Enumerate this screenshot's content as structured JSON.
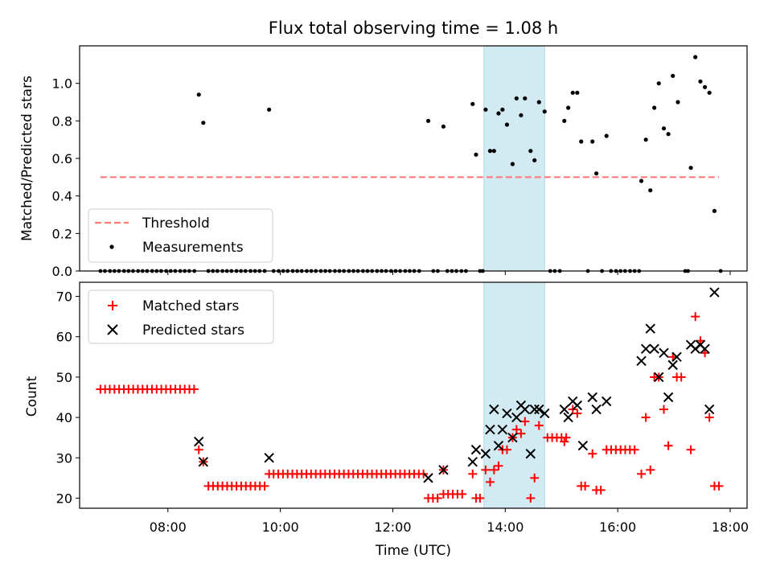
{
  "title": "Flux total observing time = 1.08 h",
  "colors": {
    "threshold": "#ff7b7b",
    "measurement": "#000000",
    "matched": "#ff0000",
    "predicted": "#000000",
    "highlight": "#add8e6"
  },
  "chart_data": [
    {
      "type": "scatter",
      "ylabel": "Matched/Predicted stars",
      "xlim_hours": [
        6.43,
        18.3
      ],
      "ylim": [
        0,
        1.2
      ],
      "yticks": [
        0.0,
        0.2,
        0.4,
        0.6,
        0.8,
        1.0
      ],
      "highlight_span_hours": [
        13.62,
        14.7
      ],
      "threshold": {
        "name": "Threshold",
        "value": 0.5,
        "x_range_hours": [
          6.8,
          17.8
        ],
        "style": "dashed"
      },
      "legend": {
        "position": "lower-left",
        "entries": [
          "Threshold",
          "Measurements"
        ]
      },
      "series": [
        {
          "name": "Measurements",
          "marker": "dot",
          "points": [
            [
              8.55,
              0.94
            ],
            [
              8.63,
              0.79
            ],
            [
              9.8,
              0.86
            ],
            [
              12.63,
              0.8
            ],
            [
              12.9,
              0.77
            ],
            [
              13.42,
              0.89
            ],
            [
              13.48,
              0.62
            ],
            [
              13.65,
              0.86
            ],
            [
              13.73,
              0.64
            ],
            [
              13.8,
              0.64
            ],
            [
              13.88,
              0.84
            ],
            [
              13.95,
              0.86
            ],
            [
              14.03,
              0.78
            ],
            [
              14.13,
              0.57
            ],
            [
              14.2,
              0.92
            ],
            [
              14.28,
              0.83
            ],
            [
              14.35,
              0.92
            ],
            [
              14.45,
              0.64
            ],
            [
              14.52,
              0.59
            ],
            [
              14.6,
              0.9
            ],
            [
              14.7,
              0.85
            ],
            [
              15.05,
              0.8
            ],
            [
              15.12,
              0.87
            ],
            [
              15.2,
              0.95
            ],
            [
              15.28,
              0.95
            ],
            [
              15.35,
              0.69
            ],
            [
              15.55,
              0.69
            ],
            [
              15.62,
              0.52
            ],
            [
              15.8,
              0.72
            ],
            [
              16.42,
              0.48
            ],
            [
              16.5,
              0.7
            ],
            [
              16.58,
              0.43
            ],
            [
              16.65,
              0.87
            ],
            [
              16.73,
              1.0
            ],
            [
              16.82,
              0.76
            ],
            [
              16.9,
              0.73
            ],
            [
              16.98,
              1.04
            ],
            [
              17.07,
              0.9
            ],
            [
              17.3,
              0.55
            ],
            [
              17.38,
              1.14
            ],
            [
              17.47,
              1.01
            ],
            [
              17.55,
              0.98
            ],
            [
              17.63,
              0.95
            ],
            [
              17.72,
              0.32
            ]
          ],
          "zero_points_hours": [
            6.8,
            6.88,
            6.97,
            7.05,
            7.13,
            7.22,
            7.3,
            7.38,
            7.47,
            7.55,
            7.63,
            7.72,
            7.8,
            7.88,
            7.97,
            8.05,
            8.13,
            8.22,
            8.3,
            8.38,
            8.47,
            8.72,
            8.8,
            8.88,
            8.97,
            9.05,
            9.13,
            9.22,
            9.3,
            9.38,
            9.47,
            9.55,
            9.63,
            9.72,
            9.88,
            9.97,
            10.05,
            10.13,
            10.22,
            10.3,
            10.38,
            10.47,
            10.55,
            10.63,
            10.72,
            10.8,
            10.88,
            10.97,
            11.05,
            11.13,
            11.22,
            11.3,
            11.38,
            11.47,
            11.55,
            11.63,
            11.72,
            11.8,
            11.88,
            11.97,
            12.05,
            12.13,
            12.22,
            12.3,
            12.38,
            12.47,
            12.72,
            12.8,
            12.97,
            13.05,
            13.13,
            13.22,
            13.3,
            13.55,
            13.6,
            14.8,
            14.88,
            14.97,
            15.47,
            15.72,
            15.88,
            15.97,
            16.05,
            16.13,
            16.22,
            16.3,
            16.38,
            17.2,
            17.25,
            17.83
          ]
        }
      ]
    },
    {
      "type": "scatter",
      "xlabel": "Time (UTC)",
      "ylabel": "Count",
      "xlim_hours": [
        6.43,
        18.3
      ],
      "ylim": [
        17.5,
        73.5
      ],
      "yticks": [
        20,
        30,
        40,
        50,
        60,
        70
      ],
      "xticks": [
        "08:00",
        "10:00",
        "12:00",
        "14:00",
        "16:00",
        "18:00"
      ],
      "xtick_hours": [
        8,
        10,
        12,
        14,
        16,
        18
      ],
      "highlight_span_hours": [
        13.62,
        14.7
      ],
      "legend": {
        "position": "upper-left",
        "entries": [
          "Matched stars",
          "Predicted stars"
        ]
      },
      "series": [
        {
          "name": "Matched stars",
          "marker": "plus",
          "runs": [
            {
              "from": 6.8,
              "to": 8.47,
              "step": 0.0833,
              "value": 47
            },
            {
              "from": 8.72,
              "to": 9.72,
              "step": 0.0833,
              "value": 23
            },
            {
              "from": 9.88,
              "to": 12.55,
              "step": 0.0833,
              "value": 26
            },
            {
              "from": 12.63,
              "to": 12.8,
              "step": 0.0833,
              "value": 20
            },
            {
              "from": 12.9,
              "to": 13.3,
              "step": 0.0833,
              "value": 21
            },
            {
              "from": 14.75,
              "to": 15.12,
              "step": 0.0833,
              "value": 35
            },
            {
              "from": 15.8,
              "to": 16.3,
              "step": 0.0833,
              "value": 32
            }
          ],
          "points": [
            [
              8.55,
              32
            ],
            [
              8.63,
              29
            ],
            [
              9.8,
              26
            ],
            [
              12.9,
              27
            ],
            [
              13.42,
              26
            ],
            [
              13.48,
              20
            ],
            [
              13.55,
              20
            ],
            [
              13.65,
              27
            ],
            [
              13.73,
              24
            ],
            [
              13.8,
              27
            ],
            [
              13.88,
              28
            ],
            [
              13.95,
              32
            ],
            [
              14.03,
              32
            ],
            [
              14.13,
              35
            ],
            [
              14.2,
              37
            ],
            [
              14.28,
              36
            ],
            [
              14.35,
              39
            ],
            [
              14.45,
              20
            ],
            [
              14.52,
              25
            ],
            [
              14.6,
              38
            ],
            [
              15.05,
              34
            ],
            [
              15.2,
              42
            ],
            [
              15.28,
              41
            ],
            [
              15.35,
              23
            ],
            [
              15.42,
              23
            ],
            [
              15.55,
              31
            ],
            [
              15.62,
              22
            ],
            [
              15.7,
              22
            ],
            [
              16.42,
              26
            ],
            [
              16.5,
              40
            ],
            [
              16.58,
              27
            ],
            [
              16.65,
              50
            ],
            [
              16.73,
              50
            ],
            [
              16.82,
              42
            ],
            [
              16.9,
              33
            ],
            [
              16.98,
              55
            ],
            [
              17.05,
              50
            ],
            [
              17.13,
              50
            ],
            [
              17.3,
              32
            ],
            [
              17.38,
              65
            ],
            [
              17.47,
              59
            ],
            [
              17.55,
              56
            ],
            [
              17.63,
              40
            ],
            [
              17.72,
              23
            ],
            [
              17.8,
              23
            ]
          ]
        },
        {
          "name": "Predicted stars",
          "marker": "x",
          "points": [
            [
              8.55,
              34
            ],
            [
              8.63,
              29
            ],
            [
              9.8,
              30
            ],
            [
              12.63,
              25
            ],
            [
              12.9,
              27
            ],
            [
              13.42,
              29
            ],
            [
              13.48,
              32
            ],
            [
              13.65,
              31
            ],
            [
              13.73,
              37
            ],
            [
              13.8,
              42
            ],
            [
              13.88,
              33
            ],
            [
              13.95,
              37
            ],
            [
              14.03,
              41
            ],
            [
              14.13,
              35
            ],
            [
              14.2,
              40
            ],
            [
              14.28,
              43
            ],
            [
              14.35,
              42
            ],
            [
              14.45,
              31
            ],
            [
              14.52,
              42
            ],
            [
              14.6,
              42
            ],
            [
              14.7,
              41
            ],
            [
              15.05,
              42
            ],
            [
              15.12,
              40
            ],
            [
              15.2,
              44
            ],
            [
              15.28,
              43
            ],
            [
              15.38,
              33
            ],
            [
              15.55,
              45
            ],
            [
              15.62,
              42
            ],
            [
              15.8,
              44
            ],
            [
              16.42,
              54
            ],
            [
              16.5,
              57
            ],
            [
              16.58,
              62
            ],
            [
              16.65,
              57
            ],
            [
              16.73,
              50
            ],
            [
              16.82,
              56
            ],
            [
              16.9,
              45
            ],
            [
              16.98,
              53
            ],
            [
              17.05,
              55
            ],
            [
              17.3,
              58
            ],
            [
              17.38,
              57
            ],
            [
              17.47,
              58
            ],
            [
              17.55,
              57
            ],
            [
              17.63,
              42
            ],
            [
              17.72,
              71
            ]
          ]
        }
      ]
    }
  ]
}
